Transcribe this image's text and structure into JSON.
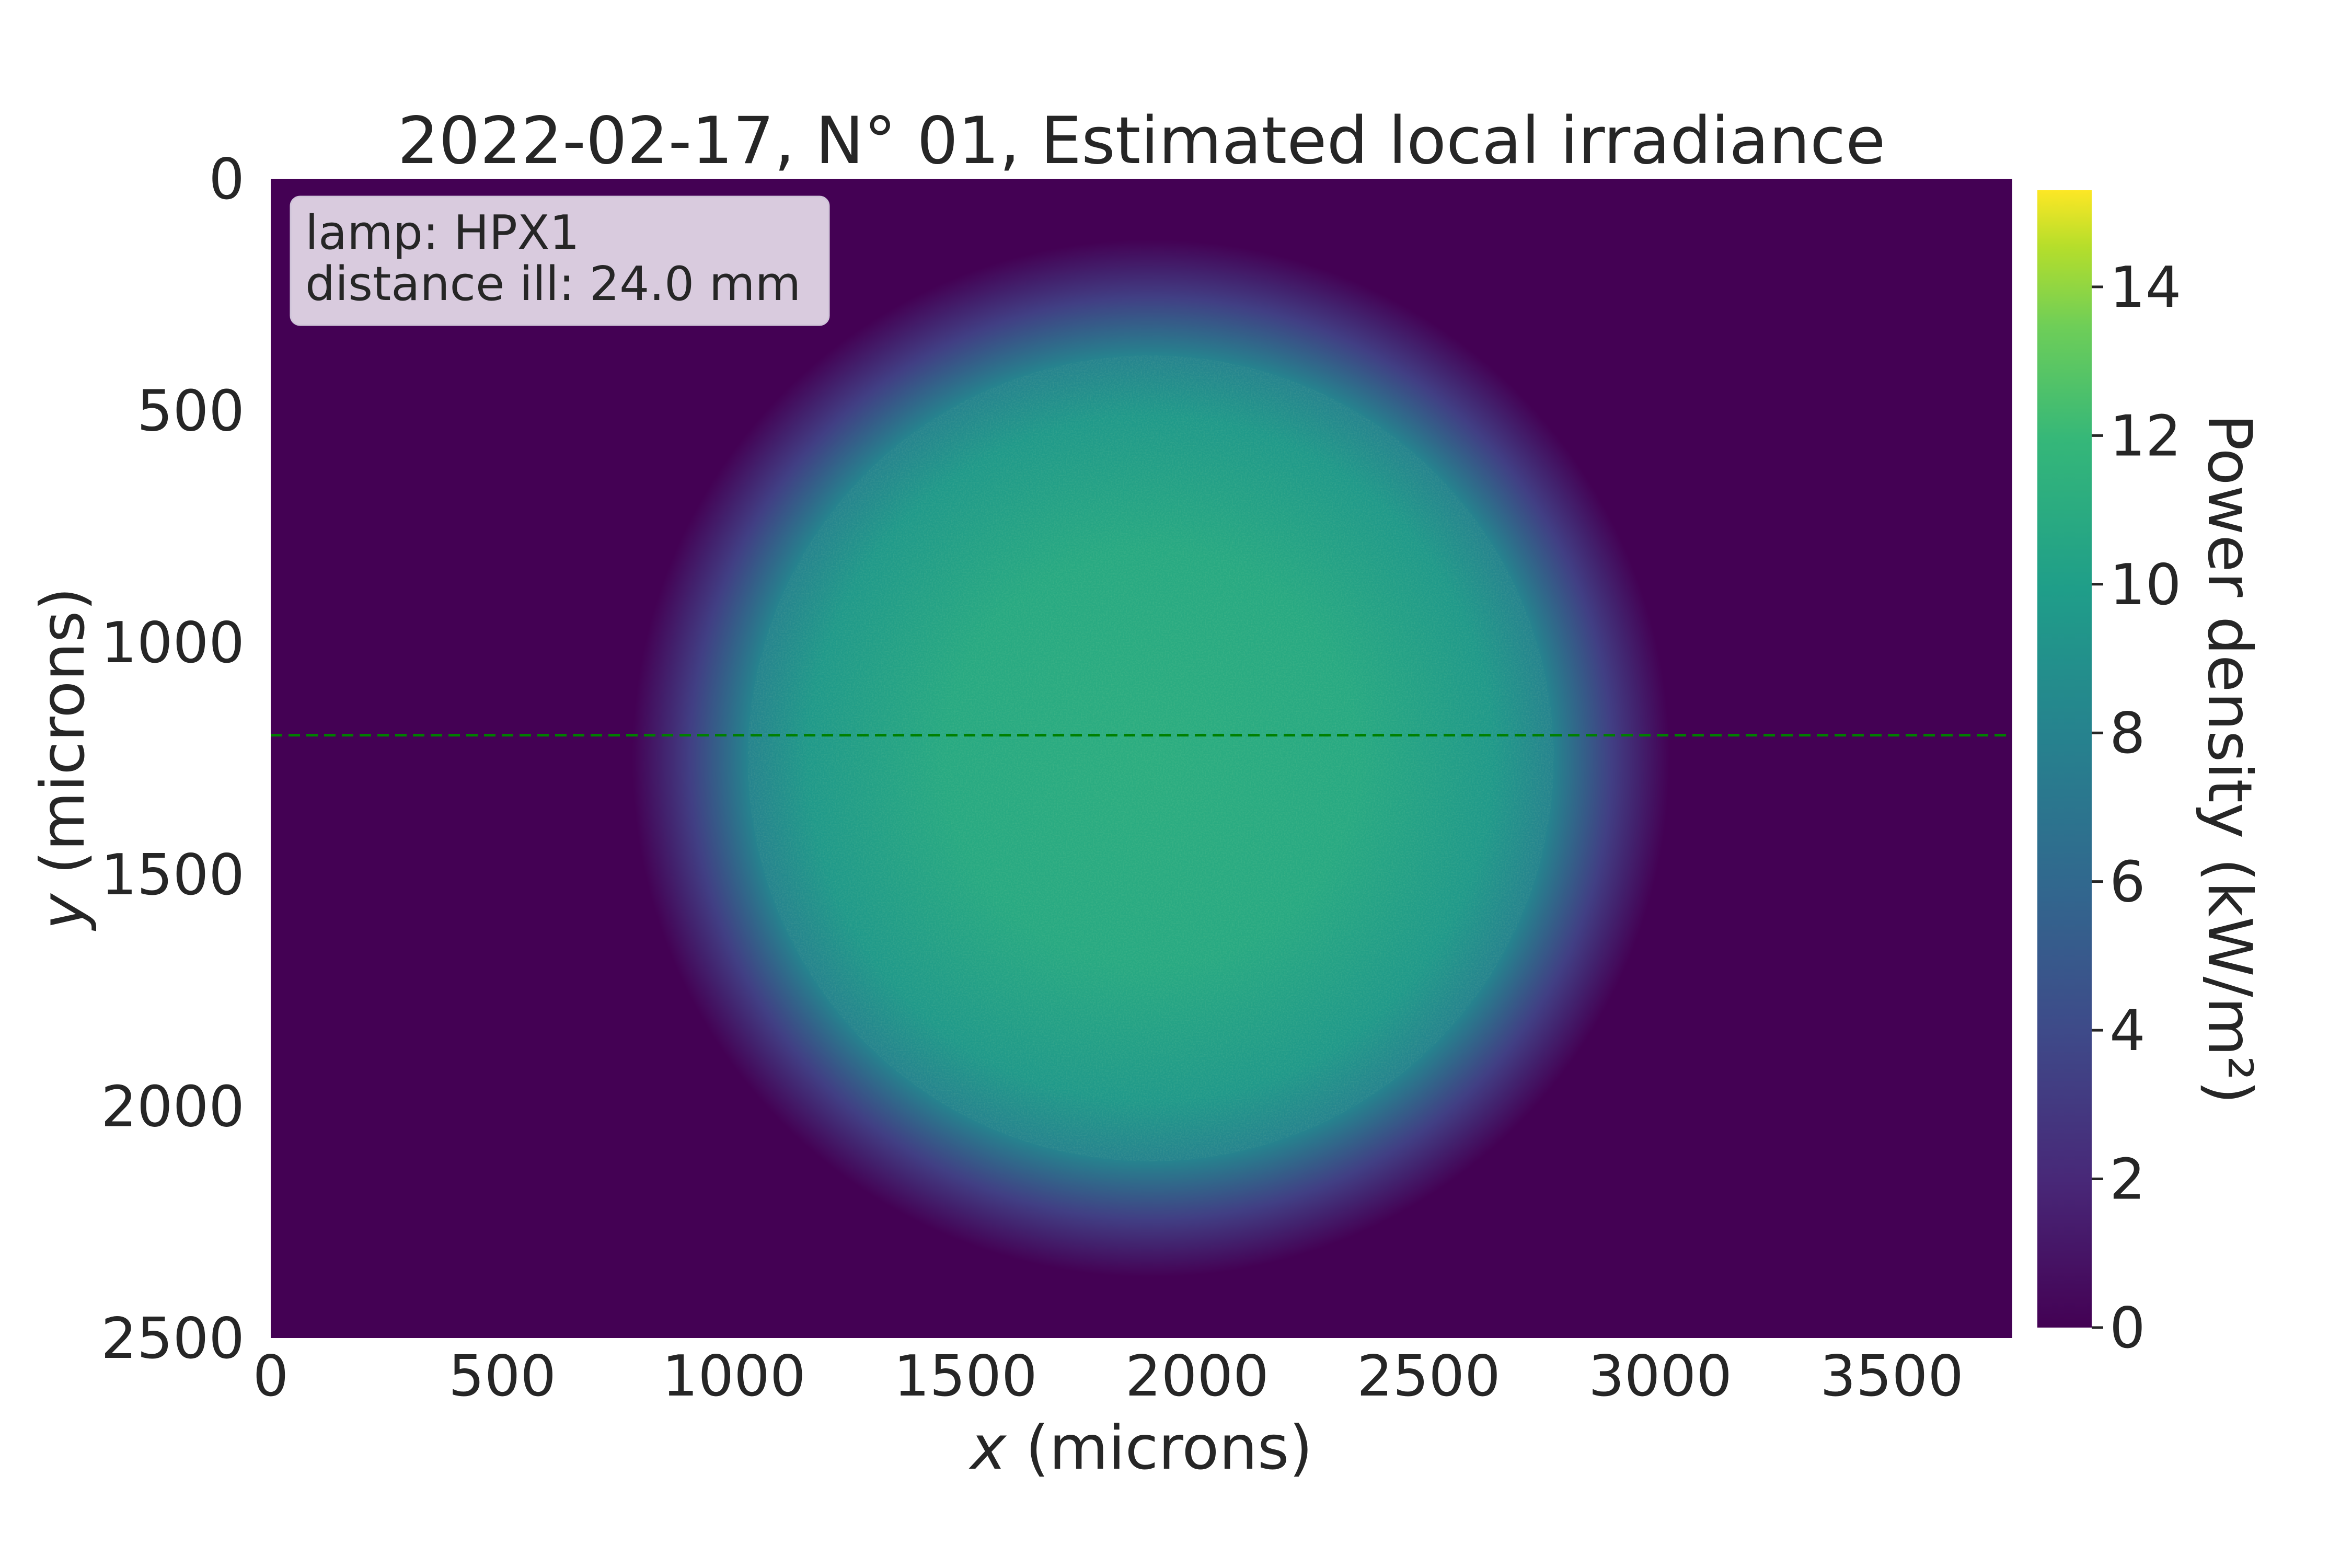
{
  "chart_data": {
    "type": "heatmap",
    "title": "2022-02-17, N° 01, Estimated local irradiance",
    "xlabel_var": "x",
    "xlabel_unit": "(microns)",
    "ylabel_var": "y",
    "ylabel_unit": "(microns)",
    "xlim": [
      0,
      3760
    ],
    "ylim": [
      2500,
      0
    ],
    "x_ticks": [
      0,
      500,
      1000,
      1500,
      2000,
      2500,
      3000,
      3500
    ],
    "y_ticks": [
      0,
      500,
      1000,
      1500,
      2000,
      2500
    ],
    "colorbar": {
      "label": "Power density (kW/m²)",
      "range": [
        0,
        15.3
      ],
      "ticks": [
        0,
        2,
        4,
        6,
        8,
        10,
        12,
        14
      ],
      "colormap": "viridis"
    },
    "annotation": {
      "lines": [
        "lamp: HPX1",
        "distance ill: 24.0 mm"
      ]
    },
    "spot": {
      "center_x": 1900,
      "center_y": 1250,
      "radius_plateau": 870,
      "radius_edge": 1120,
      "peak_value": 9.5,
      "background_value": 0
    },
    "reference_line": {
      "y": 1200,
      "color": "#008000",
      "style": "dashed"
    },
    "grid": false
  }
}
